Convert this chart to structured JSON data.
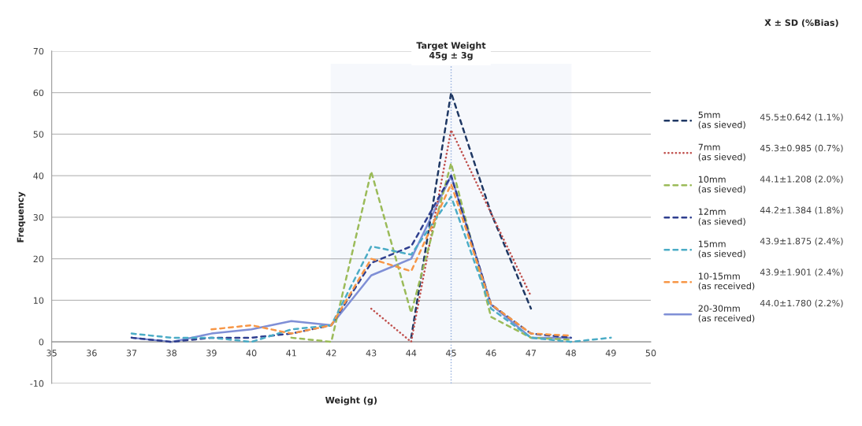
{
  "chart_data": {
    "type": "line",
    "xlabel": "Weight (g)",
    "ylabel": "Frequency",
    "xlim": [
      35,
      50
    ],
    "xticks": [
      35,
      36,
      37,
      38,
      39,
      40,
      41,
      42,
      43,
      44,
      45,
      46,
      47,
      48,
      49,
      50
    ],
    "ylim": [
      -10,
      70
    ],
    "yticks": [
      -10,
      0,
      10,
      20,
      30,
      40,
      50,
      60,
      70
    ],
    "grid": "y",
    "legend": "right",
    "series": [
      {
        "name": "5mm\n(as sieved)",
        "color": "#1f3864",
        "line_style": "dashed",
        "x": [
          44,
          45,
          46,
          47
        ],
        "values": [
          1,
          60,
          31,
          8
        ]
      },
      {
        "name": "7mm\n(as sieved)",
        "color": "#c0504d",
        "line_style": "dotted",
        "x": [
          43,
          44,
          45,
          46,
          47
        ],
        "values": [
          8,
          0,
          51,
          31,
          11
        ]
      },
      {
        "name": "10mm\n(as sieved)",
        "color": "#9bbb59",
        "line_style": "dashed",
        "x": [
          41,
          42,
          43,
          44,
          45,
          46,
          47,
          48
        ],
        "values": [
          1,
          0,
          41,
          7,
          43,
          6,
          1,
          0.5
        ]
      },
      {
        "name": "12mm\n(as sieved)",
        "color": "#2f3f8f",
        "line_style": "dashed",
        "x": [
          37,
          38,
          39,
          40,
          41,
          42,
          43,
          44,
          45,
          46,
          47,
          48
        ],
        "values": [
          1,
          0,
          1,
          1,
          2,
          4,
          19,
          23,
          40,
          9,
          2,
          1
        ]
      },
      {
        "name": "15mm\n(as sieved)",
        "color": "#4bacc6",
        "line_style": "dashed",
        "x": [
          37,
          38,
          39,
          40,
          41,
          42,
          43,
          44,
          45,
          46,
          47,
          48,
          49
        ],
        "values": [
          2,
          1,
          1,
          0,
          3,
          4,
          23,
          21,
          35,
          8,
          1,
          0,
          1
        ]
      },
      {
        "name": "10-15mm\n(as received)",
        "color": "#f79646",
        "line_style": "dashed",
        "x": [
          39,
          40,
          41,
          42,
          43,
          44,
          45,
          46,
          47,
          48
        ],
        "values": [
          3,
          4,
          2,
          4,
          20,
          17,
          38,
          9,
          2,
          1.5
        ]
      },
      {
        "name": "20-30mm\n(as received)",
        "color": "#7f8fd6",
        "line_style": "solid",
        "x": [
          37,
          38,
          39,
          40,
          41,
          42,
          43,
          44,
          45,
          46,
          47,
          48
        ],
        "values": [
          1,
          0,
          2,
          3,
          5,
          4,
          16,
          20,
          40,
          9,
          1,
          1
        ]
      }
    ],
    "bands": [
      {
        "axis": "x",
        "from": 42,
        "to": 48,
        "label": "Target Weight\n45g ± 3g",
        "color": "#8eaadb"
      }
    ],
    "ref_lines": [
      {
        "axis": "x",
        "value": 45,
        "color": "#8eaadb",
        "line_style": "dotted"
      }
    ],
    "annotations": [
      "X̄ ± SD (%Bias)",
      "45.5±0.642 (1.1%)",
      "45.3±0.985 (0.7%)",
      "44.1±1.208 (2.0%)",
      "44.2±1.384 (1.8%)",
      "43.9±1.875 (2.4%)",
      "43.9±1.901 (2.4%)",
      "44.0±1.780 (2.2%)"
    ]
  }
}
